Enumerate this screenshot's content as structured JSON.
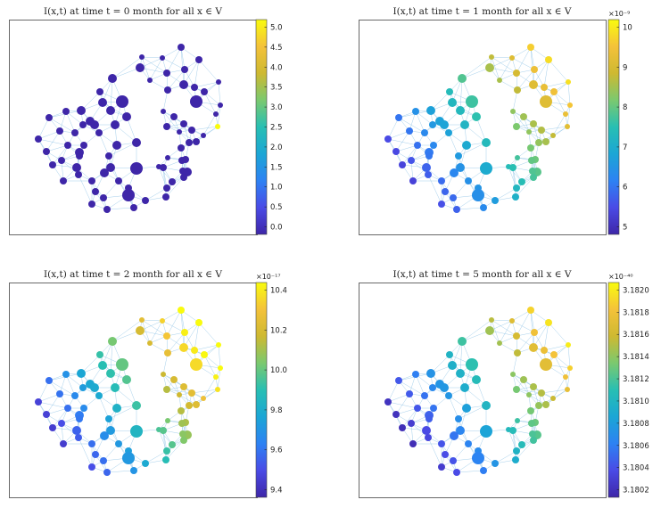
{
  "colors": {
    "edge": "#8ec3e6",
    "frame": "#444444",
    "colormap": [
      "#3e26a8",
      "#4a4be6",
      "#2d82f3",
      "#1ba6d5",
      "#28bfb3",
      "#7bc96f",
      "#ceb931",
      "#f4c23a",
      "#f9fb0e"
    ]
  },
  "chart_data": [
    {
      "type": "scatter",
      "title": "I(x,t) at time t = 0 month for all x ∈ V",
      "colorbar": {
        "ticks": [
          "0.0",
          "0.5",
          "1.0",
          "1.5",
          "2.0",
          "2.5",
          "3.0",
          "3.5",
          "4.0",
          "4.5",
          "5.0"
        ],
        "exponent": ""
      },
      "palette_mode": "t0"
    },
    {
      "type": "scatter",
      "title": "I(x,t) at time t = 1 month for all x ∈ V",
      "colorbar": {
        "ticks": [
          "5",
          "6",
          "7",
          "8",
          "9",
          "10"
        ],
        "exponent": "×10⁻⁹"
      },
      "palette_mode": "t1"
    },
    {
      "type": "scatter",
      "title": "I(x,t) at time t = 2 month for all x ∈ V",
      "colorbar": {
        "ticks": [
          "9.4",
          "9.6",
          "9.8",
          "10.0",
          "10.2",
          "10.4"
        ],
        "exponent": "×10⁻¹⁷"
      },
      "palette_mode": "t2"
    },
    {
      "type": "scatter",
      "title": "I(x,t) at time t = 5 month for all x ∈ V",
      "colorbar": {
        "ticks": [
          "3.1802",
          "3.1804",
          "3.1806",
          "3.1808",
          "3.1810",
          "3.1812",
          "3.1814",
          "3.1816",
          "3.1818",
          "3.1820"
        ],
        "exponent": "×10⁻⁴⁰"
      },
      "palette_mode": "t5"
    }
  ]
}
